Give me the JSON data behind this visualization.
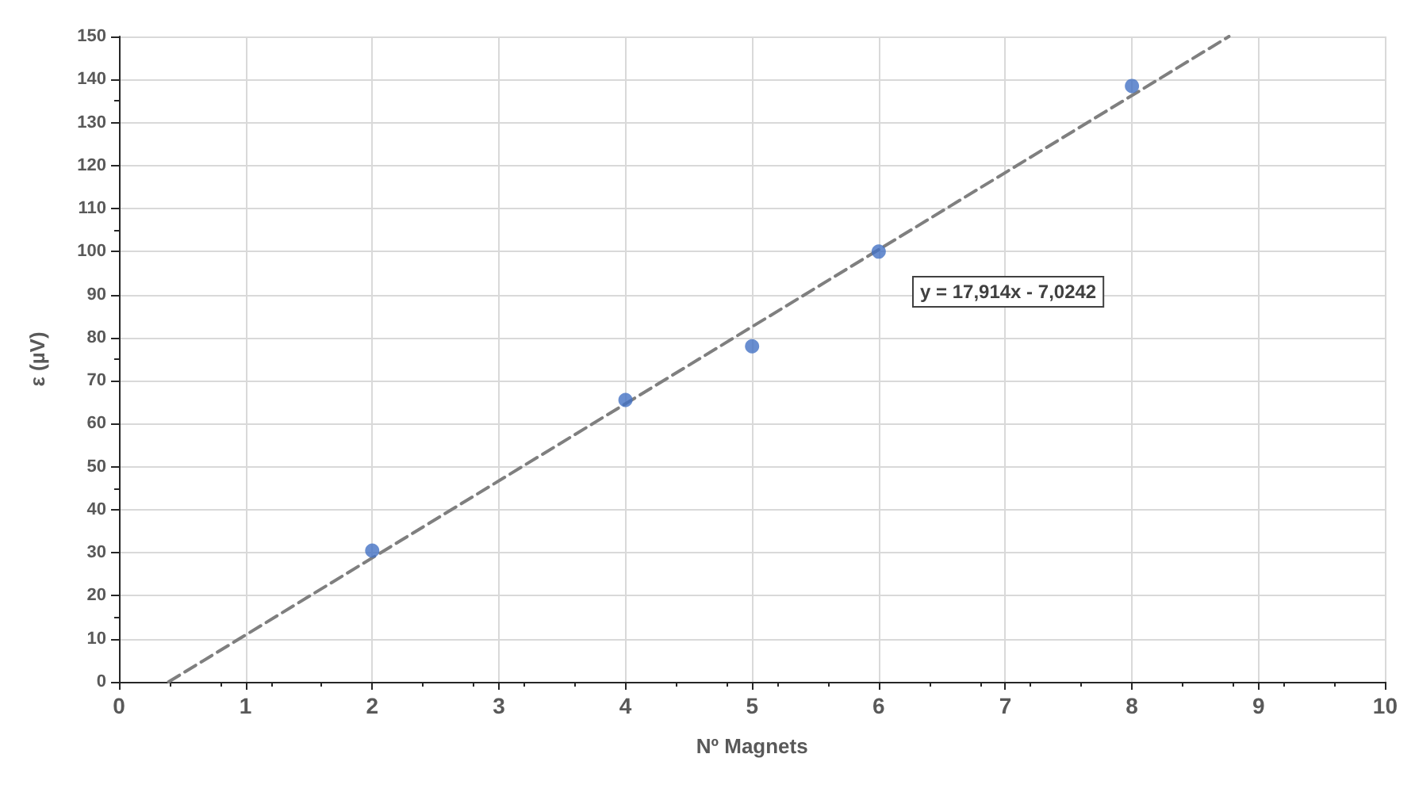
{
  "chart_data": {
    "type": "scatter",
    "xlabel": "Nº Magnets",
    "ylabel": "ε (µV)",
    "x": [
      2,
      4,
      5,
      6,
      8
    ],
    "series": [
      {
        "color": "#4472c4",
        "values": [
          30.5,
          65.5,
          78,
          100,
          138.5
        ]
      },
      {
        "type": "line",
        "color": "#7f7f7f",
        "line_style": "dashed",
        "marker": "none",
        "x": [
          0.392,
          8.766
        ],
        "values": [
          0,
          150
        ]
      }
    ],
    "xlim": [
      0,
      10
    ],
    "xticks": [
      0,
      1,
      2,
      3,
      4,
      5,
      6,
      7,
      8,
      9,
      10
    ],
    "ylim": [
      0,
      150
    ],
    "yticks": [
      0,
      10,
      20,
      30,
      40,
      50,
      60,
      70,
      80,
      90,
      100,
      110,
      120,
      130,
      140,
      150
    ],
    "grid": true,
    "marker": "circle",
    "annotations": [
      "y = 17,914x - 7,0242"
    ]
  }
}
